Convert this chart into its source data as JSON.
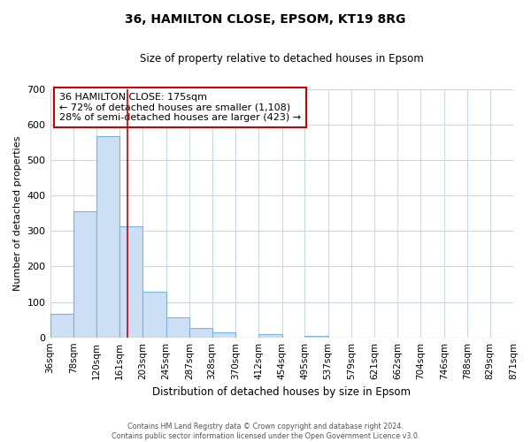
{
  "title": "36, HAMILTON CLOSE, EPSOM, KT19 8RG",
  "subtitle": "Size of property relative to detached houses in Epsom",
  "xlabel": "Distribution of detached houses by size in Epsom",
  "ylabel": "Number of detached properties",
  "bin_edges": [
    36,
    78,
    120,
    161,
    203,
    245,
    287,
    328,
    370,
    412,
    454,
    495,
    537,
    579,
    621,
    662,
    704,
    746,
    788,
    829,
    871
  ],
  "bar_heights": [
    67,
    355,
    567,
    312,
    128,
    57,
    27,
    15,
    0,
    10,
    0,
    5,
    0,
    0,
    0,
    0,
    0,
    0,
    0,
    0
  ],
  "bar_color": "#ccdff5",
  "bar_edge_color": "#7ab3dc",
  "property_size": 175,
  "vline_color": "#cc0000",
  "ylim": [
    0,
    700
  ],
  "yticks": [
    0,
    100,
    200,
    300,
    400,
    500,
    600,
    700
  ],
  "annotation_title": "36 HAMILTON CLOSE: 175sqm",
  "annotation_line1": "← 72% of detached houses are smaller (1,108)",
  "annotation_line2": "28% of semi-detached houses are larger (423) →",
  "annotation_box_color": "#ffffff",
  "annotation_box_edge": "#cc0000",
  "footer1": "Contains HM Land Registry data © Crown copyright and database right 2024.",
  "footer2": "Contains public sector information licensed under the Open Government Licence v3.0.",
  "background_color": "#ffffff",
  "grid_color": "#c8d8ea"
}
